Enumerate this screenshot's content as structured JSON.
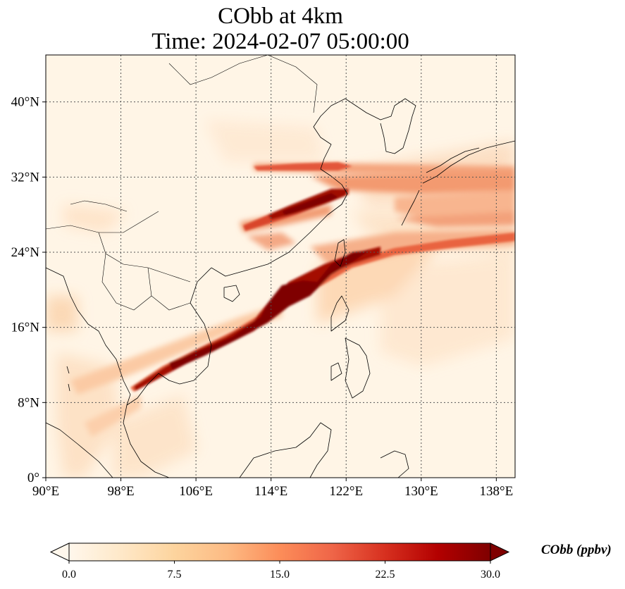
{
  "title": {
    "line1": "CObb at 4km",
    "line2": "Time: 2024-02-07 05:00:00"
  },
  "map": {
    "lon_range": [
      90,
      140
    ],
    "lat_range": [
      0,
      45
    ],
    "gridlines": "dotted",
    "lon_ticks": [
      "90°E",
      "98°E",
      "106°E",
      "114°E",
      "122°E",
      "130°E",
      "138°E"
    ],
    "lat_ticks": [
      "0°",
      "8°N",
      "16°N",
      "24°N",
      "32°N",
      "40°N"
    ],
    "colormap": "OrRd",
    "background_color": "#fff5e6"
  },
  "colorbar": {
    "label": "CObb (ppbv)",
    "ticks": [
      "0.0",
      "7.5",
      "15.0",
      "22.5",
      "30.0"
    ],
    "range": [
      0,
      30
    ],
    "extend": "both",
    "colors": [
      "#fff7ec",
      "#fee8c8",
      "#fdd49e",
      "#fdbb84",
      "#fc8d59",
      "#ef6548",
      "#d7301f",
      "#b30000",
      "#7f0000"
    ]
  }
}
